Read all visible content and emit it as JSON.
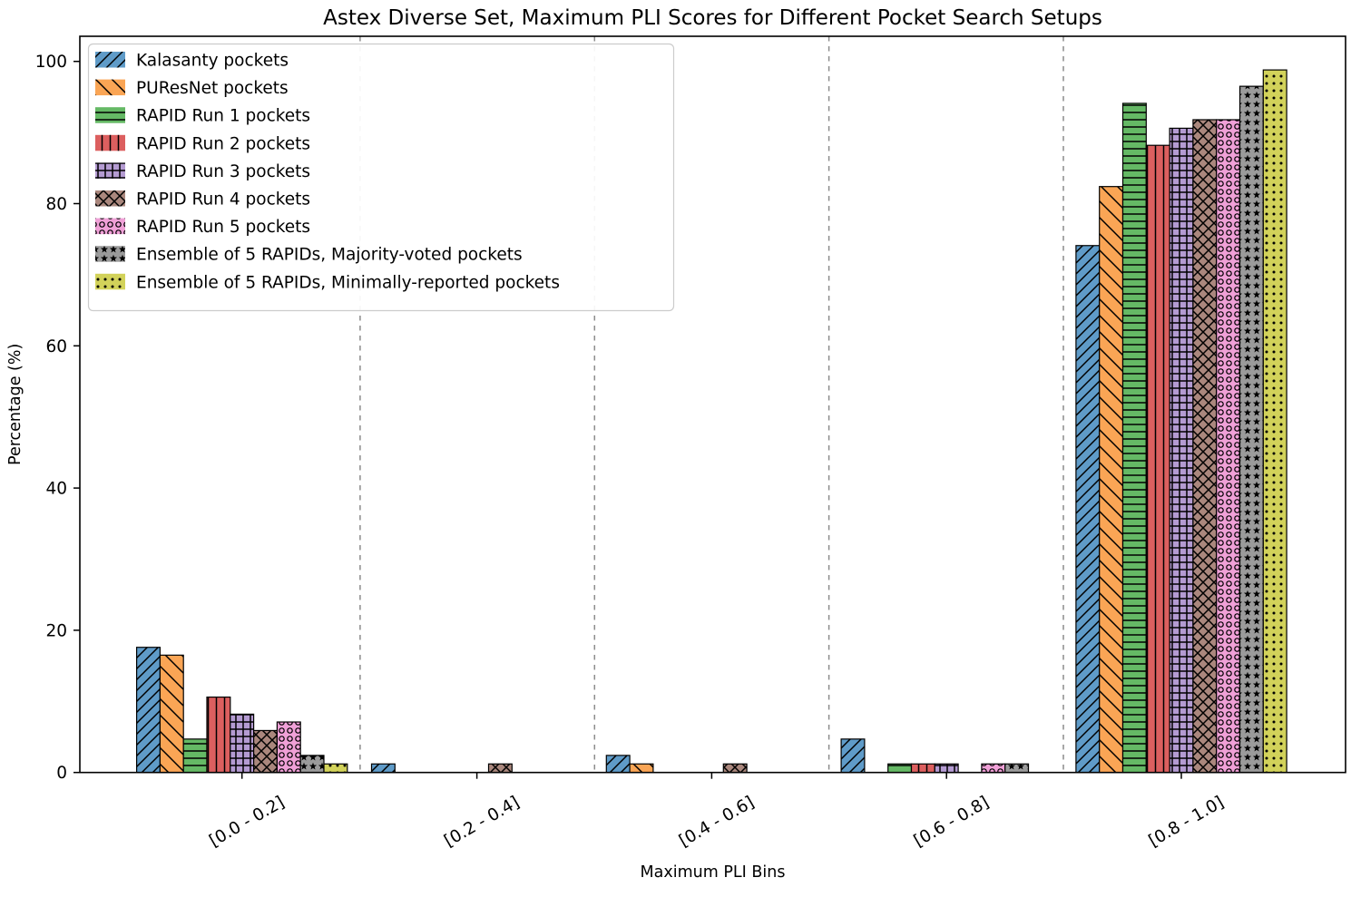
{
  "chart_data": {
    "type": "bar",
    "title": "Astex Diverse Set, Maximum PLI Scores for Different Pocket Search Setups",
    "xlabel": "Maximum PLI Bins",
    "ylabel": "Percentage (%)",
    "categories": [
      "[0.0 - 0.2]",
      "[0.2 - 0.4]",
      "[0.4 - 0.6]",
      "[0.6 - 0.8]",
      "[0.8 - 1.0]"
    ],
    "yticks": [
      0,
      20,
      40,
      60,
      80,
      100
    ],
    "ylim": [
      0,
      103.5
    ],
    "grid": "dashed vertical separators between bins, no horizontal gridlines",
    "legend_position": "upper left",
    "separator_color": "#8c8c8c",
    "bar_edge_color": "#000000",
    "series": [
      {
        "name": "Kalasanty pockets",
        "color": "#5F9BC8",
        "hatch": "/",
        "values": [
          17.6,
          1.2,
          2.4,
          4.7,
          74.1
        ]
      },
      {
        "name": "PUResNet pockets",
        "color": "#FAA555",
        "hatch": "\\",
        "values": [
          16.5,
          0,
          1.2,
          0,
          82.4
        ]
      },
      {
        "name": "RAPID Run 1 pockets",
        "color": "#65B965",
        "hatch": "-",
        "values": [
          4.7,
          0,
          0,
          1.2,
          94.1
        ]
      },
      {
        "name": "RAPID Run 2 pockets",
        "color": "#DC5F5F",
        "hatch": "|",
        "values": [
          10.6,
          0,
          0,
          1.2,
          88.2
        ]
      },
      {
        "name": "RAPID Run 3 pockets",
        "color": "#B49BD2",
        "hatch": "+",
        "values": [
          8.2,
          0,
          0,
          1.2,
          90.6
        ]
      },
      {
        "name": "RAPID Run 4 pockets",
        "color": "#AA877D",
        "hatch": "x",
        "values": [
          5.9,
          1.2,
          1.2,
          0,
          91.8
        ]
      },
      {
        "name": "RAPID Run 5 pockets",
        "color": "#F0A0D7",
        "hatch": "o",
        "values": [
          7.1,
          0,
          0,
          1.2,
          91.8
        ]
      },
      {
        "name": "Ensemble of 5 RAPIDs, Majority-voted pockets",
        "color": "#9B9B9B",
        "hatch": "*",
        "values": [
          2.4,
          0,
          0,
          1.2,
          96.5
        ]
      },
      {
        "name": "Ensemble of 5 RAPIDs, Minimally-reported pockets",
        "color": "#D2D25A",
        "hatch": ".",
        "values": [
          1.2,
          0,
          0,
          0,
          98.8
        ]
      }
    ]
  }
}
